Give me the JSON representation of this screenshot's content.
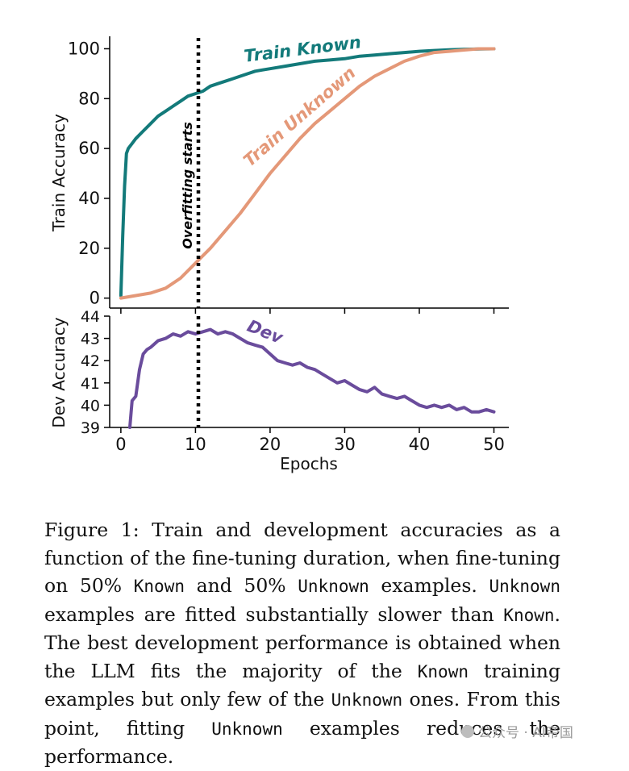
{
  "chart_data": [
    {
      "type": "line",
      "ylabel": "Train Accuracy",
      "xlabel": "",
      "xlim": [
        -1.5,
        52
      ],
      "ylim": [
        -4,
        105
      ],
      "xticks": [
        0,
        10,
        20,
        30,
        40,
        50
      ],
      "yticks": [
        0,
        20,
        40,
        60,
        80,
        100
      ],
      "ytick_labels": [
        "0",
        "20",
        "40",
        "60",
        "80",
        "100"
      ],
      "vline": {
        "x": 10,
        "label": "Overfitting starts"
      },
      "series": [
        {
          "name": "Train Known",
          "color": "#137a7a",
          "x": [
            0,
            0.25,
            0.5,
            0.75,
            1,
            1.5,
            2,
            3,
            4,
            5,
            6,
            7,
            8,
            9,
            10,
            11,
            12,
            13,
            14,
            15,
            16,
            17,
            18,
            19,
            20,
            22,
            24,
            26,
            28,
            30,
            32,
            34,
            36,
            38,
            40,
            42,
            44,
            46,
            48,
            50
          ],
          "values": [
            1,
            25,
            45,
            58,
            60,
            62,
            64,
            67,
            70,
            73,
            75,
            77,
            79,
            81,
            82,
            83,
            85,
            86,
            87,
            88,
            89,
            90,
            91,
            91.5,
            92,
            93,
            94,
            95,
            95.5,
            96,
            97,
            97.5,
            98,
            98.5,
            99,
            99.3,
            99.6,
            99.8,
            99.9,
            100
          ]
        },
        {
          "name": "Train Unknown",
          "color": "#e49878",
          "x": [
            0,
            2,
            4,
            6,
            8,
            10,
            12,
            14,
            16,
            18,
            20,
            22,
            24,
            26,
            28,
            30,
            32,
            34,
            36,
            38,
            40,
            42,
            44,
            46,
            48,
            50
          ],
          "values": [
            0,
            1,
            2,
            4,
            8,
            14,
            20,
            27,
            34,
            42,
            50,
            57,
            64,
            70,
            75,
            80,
            85,
            89,
            92,
            95,
            97,
            98.5,
            99,
            99.5,
            100,
            100
          ]
        }
      ]
    },
    {
      "type": "line",
      "ylabel": "Dev Accuracy",
      "xlabel": "Epochs",
      "xlim": [
        -1.5,
        52
      ],
      "ylim": [
        39,
        44
      ],
      "xticks": [
        0,
        10,
        20,
        30,
        40,
        50
      ],
      "xtick_labels": [
        "0",
        "10",
        "20",
        "30",
        "40",
        "50"
      ],
      "yticks": [
        39,
        40,
        41,
        42,
        43,
        44
      ],
      "ytick_labels": [
        "39",
        "40",
        "41",
        "42",
        "43",
        "44"
      ],
      "vline": {
        "x": 10
      },
      "series": [
        {
          "name": "Dev",
          "color": "#6a4c9c",
          "x": [
            1.2,
            1.5,
            2,
            2.5,
            3,
            3.5,
            4,
            5,
            6,
            7,
            8,
            9,
            10,
            11,
            12,
            13,
            14,
            15,
            16,
            17,
            18,
            19,
            20,
            21,
            22,
            23,
            24,
            25,
            26,
            27,
            28,
            29,
            30,
            31,
            32,
            33,
            34,
            35,
            36,
            37,
            38,
            39,
            40,
            41,
            42,
            43,
            44,
            45,
            46,
            47,
            48,
            49,
            50
          ],
          "values": [
            39,
            40.2,
            40.4,
            41.6,
            42.3,
            42.5,
            42.6,
            42.9,
            43.0,
            43.2,
            43.1,
            43.3,
            43.2,
            43.3,
            43.4,
            43.2,
            43.3,
            43.2,
            43.0,
            42.8,
            42.7,
            42.6,
            42.3,
            42.0,
            41.9,
            41.8,
            41.9,
            41.7,
            41.6,
            41.4,
            41.2,
            41.0,
            41.1,
            40.9,
            40.7,
            40.6,
            40.8,
            40.5,
            40.4,
            40.3,
            40.4,
            40.2,
            40.0,
            39.9,
            40.0,
            39.9,
            40.0,
            39.8,
            39.9,
            39.7,
            39.7,
            39.8,
            39.7
          ]
        }
      ]
    }
  ],
  "caption": {
    "p1": "Figure 1: Train and development accuracies as a function of the fine-tuning duration, when fine-tuning on ",
    "pct1": "50%",
    "known1": "Known",
    "p2": " and ",
    "pct2": "50%",
    "unknown1": "Unknown",
    "p3": " examples. ",
    "unknown2": "Unknown",
    "p4": " examples are fitted substantially slower than ",
    "known2": "Known",
    "p5": ". The best development performance is obtained when the LLM fits the majority of the ",
    "known3": "Known",
    "p6": " training examples but only few of the ",
    "unknown3": "Unknown",
    "p7": " ones.  From this point, fitting ",
    "unknown4": "Unknown",
    "p8": " examples reduces the performance."
  },
  "watermark": {
    "text": "公众号 · AI帝国"
  }
}
